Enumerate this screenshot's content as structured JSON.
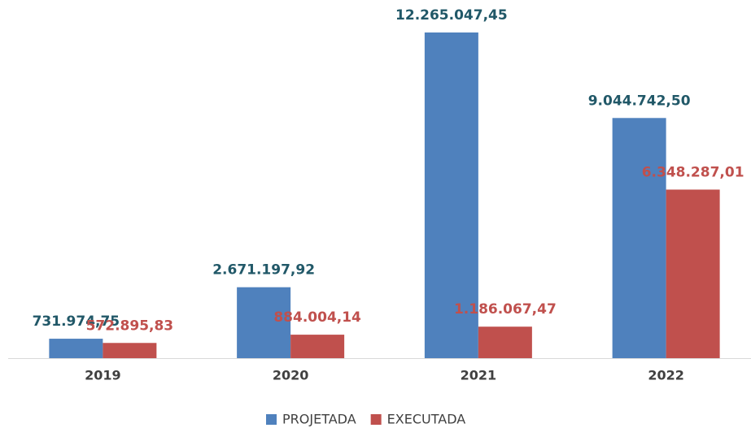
{
  "chart_data": {
    "type": "bar",
    "categories": [
      "2019",
      "2020",
      "2021",
      "2022"
    ],
    "series": [
      {
        "name": "PROJETADA",
        "color": "#4f81bd",
        "label_color": "#215868",
        "values": [
          731974.75,
          2671197.92,
          12265047.45,
          9044742.5
        ],
        "value_labels": [
          "731.974,75",
          "2.671.197,92",
          "12.265.047,45",
          "9.044.742,50"
        ]
      },
      {
        "name": "EXECUTADA",
        "color": "#c0504d",
        "label_color": "#c0504d",
        "values": [
          572895.83,
          884004.14,
          1186067.47,
          6348287.01
        ],
        "value_labels": [
          "572.895,83",
          "884.004,14",
          "1.186.067,47",
          "6.348.287,01"
        ]
      }
    ]
  }
}
